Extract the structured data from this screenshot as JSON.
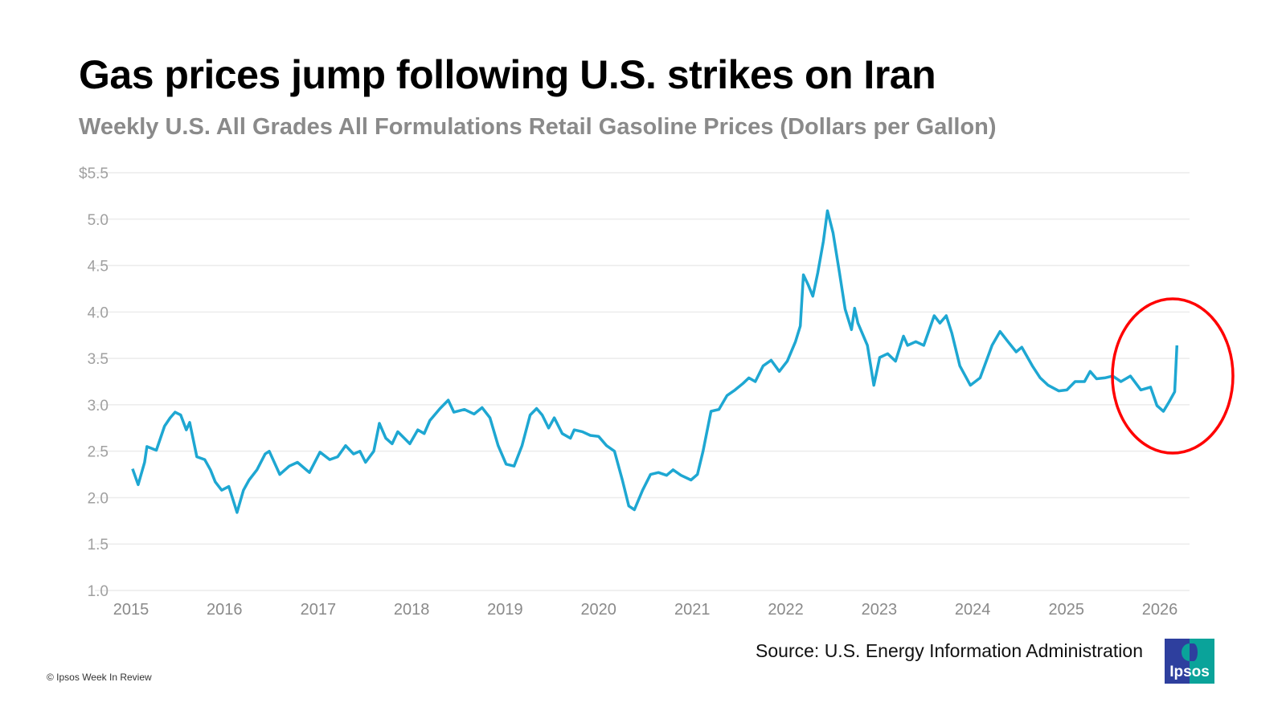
{
  "chart_data": {
    "type": "line",
    "title": "Gas prices jump following U.S. strikes on Iran",
    "subtitle": "Weekly U.S. All Grades All Formulations Retail Gasoline Prices (Dollars per Gallon)",
    "xlabel": "",
    "ylabel": "",
    "xlim": [
      "2015-01-01",
      "2026-01-01"
    ],
    "ylim": [
      1.0,
      5.5
    ],
    "x_ticks": [
      "2015",
      "2016",
      "2017",
      "2018",
      "2019",
      "2020",
      "2021",
      "2022",
      "2023",
      "2024",
      "2025",
      "2026"
    ],
    "y_ticks": [
      "1.0",
      "1.5",
      "2.0",
      "2.5",
      "3.0",
      "3.5",
      "4.0",
      "4.5",
      "5.0",
      "$5.5"
    ],
    "grid": "horizontal",
    "line_color": "#1ea7d2",
    "annotation": {
      "shape": "ellipse",
      "color": "#ff0000",
      "around": "2026 price jump"
    },
    "series": [
      {
        "x": [
          "2015-01-07",
          "2015-01-29",
          "2015-02-23",
          "2015-03-04",
          "2015-04-10",
          "2015-05-12",
          "2015-06-03",
          "2015-06-22",
          "2015-07-14",
          "2015-08-05",
          "2015-08-18",
          "2015-09-15",
          "2015-10-16",
          "2015-11-07",
          "2015-11-26",
          "2015-12-21",
          "2016-01-18",
          "2016-02-19",
          "2016-03-15",
          "2016-04-06",
          "2016-05-07",
          "2016-06-08",
          "2016-06-24",
          "2016-08-04",
          "2016-09-10",
          "2016-10-12",
          "2016-11-28",
          "2017-01-08",
          "2017-02-15",
          "2017-03-18",
          "2017-04-18",
          "2017-05-19",
          "2017-06-13",
          "2017-07-05",
          "2017-08-06",
          "2017-08-28",
          "2017-09-22",
          "2017-10-17",
          "2017-11-08",
          "2017-12-25",
          "2018-01-25",
          "2018-02-19",
          "2018-03-13",
          "2018-04-22",
          "2018-05-24",
          "2018-06-15",
          "2018-07-26",
          "2018-09-02",
          "2018-10-03",
          "2018-11-03",
          "2018-12-05",
          "2019-01-05",
          "2019-02-05",
          "2019-03-08",
          "2019-04-09",
          "2019-05-04",
          "2019-05-26",
          "2019-06-20",
          "2019-07-12",
          "2019-08-12",
          "2019-09-13",
          "2019-09-28",
          "2019-10-30",
          "2019-11-30",
          "2020-01-01",
          "2020-02-01",
          "2020-03-03",
          "2020-04-03",
          "2020-04-28",
          "2020-05-20",
          "2020-06-21",
          "2020-07-22",
          "2020-08-22",
          "2020-09-23",
          "2020-10-18",
          "2020-11-18",
          "2020-12-27",
          "2021-01-21",
          "2021-02-12",
          "2021-03-15",
          "2021-04-15",
          "2021-05-17",
          "2021-06-17",
          "2021-07-18",
          "2021-08-10",
          "2021-09-04",
          "2021-10-05",
          "2021-11-05",
          "2021-12-07",
          "2022-01-07",
          "2022-02-08",
          "2022-02-27",
          "2022-03-11",
          "2022-03-30",
          "2022-04-17",
          "2022-05-06",
          "2022-05-28",
          "2022-06-13",
          "2022-07-05",
          "2022-07-30",
          "2022-08-21",
          "2022-09-15",
          "2022-09-27",
          "2022-10-10",
          "2022-11-16",
          "2022-12-11",
          "2023-01-03",
          "2023-02-03",
          "2023-03-06",
          "2023-04-06",
          "2023-04-22",
          "2023-05-24",
          "2023-06-24",
          "2023-08-04",
          "2023-08-26",
          "2023-09-20",
          "2023-10-12",
          "2023-11-12",
          "2023-12-23",
          "2024-01-30",
          "2024-03-17",
          "2024-04-17",
          "2024-05-18",
          "2024-06-19",
          "2024-07-11",
          "2024-08-21",
          "2024-09-21",
          "2024-10-22",
          "2024-12-02",
          "2025-01-03",
          "2025-02-04",
          "2025-03-13",
          "2025-04-04",
          "2025-04-29",
          "2025-05-31",
          "2025-07-01",
          "2025-08-02",
          "2025-09-08",
          "2025-10-19",
          "2025-11-26",
          "2025-12-21",
          "2026-01-15",
          "2026-02-06",
          "2026-02-28",
          "2026-03-09"
        ],
        "y": [
          2.31,
          2.14,
          2.38,
          2.55,
          2.51,
          2.77,
          2.86,
          2.92,
          2.89,
          2.73,
          2.81,
          2.44,
          2.41,
          2.3,
          2.17,
          2.08,
          2.12,
          1.84,
          2.08,
          2.19,
          2.3,
          2.47,
          2.5,
          2.25,
          2.34,
          2.38,
          2.27,
          2.49,
          2.41,
          2.44,
          2.56,
          2.47,
          2.5,
          2.38,
          2.5,
          2.8,
          2.64,
          2.58,
          2.71,
          2.58,
          2.73,
          2.69,
          2.83,
          2.96,
          3.05,
          2.92,
          2.95,
          2.9,
          2.97,
          2.86,
          2.56,
          2.36,
          2.34,
          2.56,
          2.89,
          2.96,
          2.89,
          2.75,
          2.86,
          2.69,
          2.64,
          2.73,
          2.71,
          2.67,
          2.66,
          2.56,
          2.5,
          2.19,
          1.91,
          1.87,
          2.08,
          2.25,
          2.27,
          2.24,
          2.3,
          2.24,
          2.19,
          2.25,
          2.5,
          2.93,
          2.95,
          3.1,
          3.16,
          3.23,
          3.29,
          3.25,
          3.42,
          3.48,
          3.36,
          3.47,
          3.68,
          3.85,
          4.4,
          4.29,
          4.17,
          4.42,
          4.76,
          5.09,
          4.85,
          4.42,
          4.03,
          3.81,
          4.04,
          3.88,
          3.64,
          3.21,
          3.51,
          3.55,
          3.47,
          3.74,
          3.64,
          3.68,
          3.64,
          3.96,
          3.88,
          3.96,
          3.77,
          3.42,
          3.21,
          3.29,
          3.64,
          3.79,
          3.68,
          3.57,
          3.62,
          3.42,
          3.29,
          3.21,
          3.15,
          3.16,
          3.25,
          3.25,
          3.36,
          3.28,
          3.29,
          3.31,
          3.25,
          3.31,
          3.16,
          3.19,
          2.99,
          2.93,
          3.03,
          3.14,
          3.64
        ]
      }
    ]
  },
  "footer": {
    "source": "Source: U.S. Energy Information Administration",
    "copyright": "© Ipsos Week In Review",
    "logo_text": "Ipsos"
  }
}
